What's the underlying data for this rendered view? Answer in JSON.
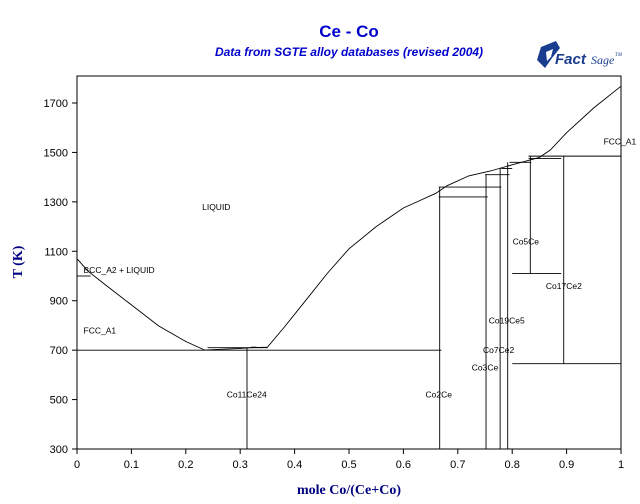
{
  "chart_data": {
    "type": "phase-diagram",
    "title": "Ce - Co",
    "subtitle": "Data from SGTE alloy databases (revised 2004)",
    "xlabel": "mole Co/(Ce+Co)",
    "ylabel": "T (K)",
    "xlim": [
      0,
      1
    ],
    "ylim": [
      300,
      1790
    ],
    "x_ticks": [
      0,
      0.1,
      0.2,
      0.3,
      0.4,
      0.5,
      0.6,
      0.7,
      0.8,
      0.9,
      1
    ],
    "x_tick_labels": [
      "0",
      "0.1",
      "0.2",
      "0.3",
      "0.4",
      "0.5",
      "0.6",
      "0.7",
      "0.8",
      "0.9",
      "1"
    ],
    "y_ticks": [
      300,
      500,
      700,
      900,
      1100,
      1300,
      1500,
      1700
    ],
    "y_tick_labels": [
      "300",
      "500",
      "700",
      "900",
      "1100",
      "1300",
      "1500",
      "1700"
    ],
    "liquidus": [
      [
        0,
        1070
      ],
      [
        0.02,
        1020
      ],
      [
        0.05,
        968
      ],
      [
        0.1,
        883
      ],
      [
        0.15,
        798
      ],
      [
        0.2,
        735
      ],
      [
        0.235,
        700
      ],
      [
        0.26,
        703
      ],
      [
        0.3,
        707
      ],
      [
        0.32,
        710
      ],
      [
        0.35,
        712
      ],
      [
        0.38,
        790
      ],
      [
        0.42,
        900
      ],
      [
        0.46,
        1010
      ],
      [
        0.5,
        1110
      ],
      [
        0.55,
        1200
      ],
      [
        0.6,
        1275
      ],
      [
        0.63,
        1305
      ],
      [
        0.66,
        1335
      ],
      [
        0.68,
        1365
      ],
      [
        0.72,
        1405
      ],
      [
        0.76,
        1425
      ],
      [
        0.8,
        1450
      ],
      [
        0.85,
        1480
      ],
      [
        0.87,
        1510
      ],
      [
        0.9,
        1580
      ],
      [
        0.95,
        1680
      ],
      [
        1.0,
        1768
      ]
    ],
    "horizontal_lines": [
      {
        "x": [
          0,
          0.025
        ],
        "y": 1000
      },
      {
        "x": [
          0,
          0.67
        ],
        "y": 700
      },
      {
        "x": [
          0.24,
          0.35
        ],
        "y": 710
      },
      {
        "x": [
          0.32,
          0.33
        ],
        "y": 712
      },
      {
        "x": [
          0.665,
          0.755
        ],
        "y": 1320
      },
      {
        "x": [
          0.665,
          0.78
        ],
        "y": 1360
      },
      {
        "x": [
          0.75,
          0.795
        ],
        "y": 1410
      },
      {
        "x": [
          0.78,
          0.8
        ],
        "y": 1435
      },
      {
        "x": [
          0.795,
          0.835
        ],
        "y": 1460
      },
      {
        "x": [
          0.83,
          1.0
        ],
        "y": 1485
      },
      {
        "x": [
          0.83,
          0.89
        ],
        "y": 1475
      },
      {
        "x": [
          0.8,
          0.89
        ],
        "y": 1010
      },
      {
        "x": [
          0.8,
          1.0
        ],
        "y": 645
      }
    ],
    "vertical_lines": [
      {
        "x": 0.0,
        "y": [
          300,
          1070
        ]
      },
      {
        "x": 0.3125,
        "y": [
          300,
          710
        ]
      },
      {
        "x": 0.6667,
        "y": [
          300,
          1360
        ]
      },
      {
        "x": 0.7519,
        "y": [
          300,
          1410
        ]
      },
      {
        "x": 0.7778,
        "y": [
          300,
          1435
        ]
      },
      {
        "x": 0.7917,
        "y": [
          300,
          1460
        ]
      },
      {
        "x": 0.8333,
        "y": [
          1010,
          1485
        ]
      },
      {
        "x": 0.8947,
        "y": [
          645,
          1485
        ]
      },
      {
        "x": 1.0,
        "y": [
          300,
          1768
        ]
      }
    ],
    "phase_labels": [
      {
        "text": "LIQUID",
        "x": 0.23,
        "y": 1280
      },
      {
        "text": "BCC_A2 + LIQUID",
        "x": 0.012,
        "y": 1025
      },
      {
        "text": "FCC_A1",
        "x": 0.012,
        "y": 780
      },
      {
        "text": "Co11Ce24",
        "x": 0.312,
        "y": 520
      },
      {
        "text": "Co2Ce",
        "x": 0.665,
        "y": 520
      },
      {
        "text": "Co3Ce",
        "x": 0.75,
        "y": 630
      },
      {
        "text": "Co7Ce2",
        "x": 0.775,
        "y": 700
      },
      {
        "text": "Co19Ce5",
        "x": 0.79,
        "y": 820
      },
      {
        "text": "Co5Ce",
        "x": 0.825,
        "y": 1140
      },
      {
        "text": "Co17Ce2",
        "x": 0.895,
        "y": 960
      },
      {
        "text": "FCC_A1",
        "x": 0.968,
        "y": 1545
      }
    ]
  },
  "logo": {
    "name": "FactSage",
    "word1": "Fact",
    "word2": "Sage",
    "mark": "TM",
    "icon": "factsage-logo-icon"
  }
}
